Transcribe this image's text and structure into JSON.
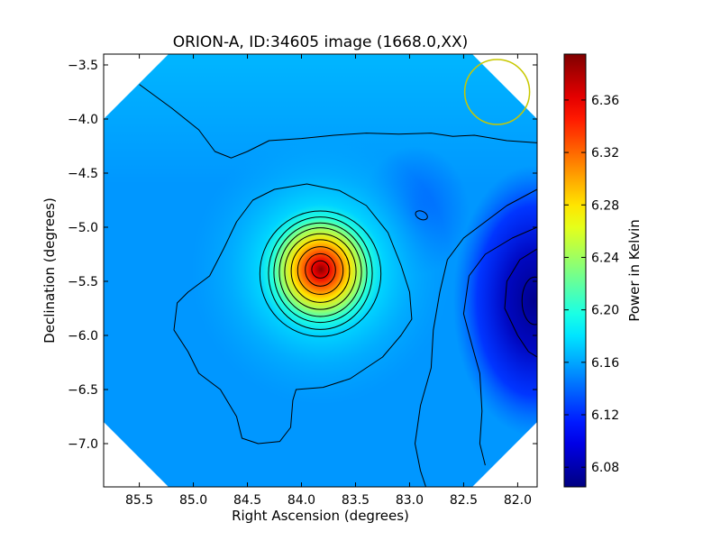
{
  "chart_data": {
    "type": "heatmap",
    "title": "ORION-A, ID:34605 image (1668.0,XX)",
    "xlabel": "Right Ascension (degrees)",
    "ylabel": "Declination (degrees)",
    "colorbar_label": "Power in Kelvin",
    "colormap": "jet",
    "xlim": [
      85.83,
      81.82
    ],
    "ylim": [
      -7.4,
      -3.4
    ],
    "x_ticks": [
      {
        "v": 85.5,
        "label": "85.5"
      },
      {
        "v": 85.0,
        "label": "85.0"
      },
      {
        "v": 84.5,
        "label": "84.5"
      },
      {
        "v": 84.0,
        "label": "84.0"
      },
      {
        "v": 83.5,
        "label": "83.5"
      },
      {
        "v": 83.0,
        "label": "83.0"
      },
      {
        "v": 82.5,
        "label": "82.5"
      },
      {
        "v": 82.0,
        "label": "82.0"
      }
    ],
    "y_ticks": [
      {
        "v": -3.5,
        "label": "−3.5"
      },
      {
        "v": -4.0,
        "label": "−4.0"
      },
      {
        "v": -4.5,
        "label": "−4.5"
      },
      {
        "v": -5.0,
        "label": "−5.0"
      },
      {
        "v": -5.5,
        "label": "−5.5"
      },
      {
        "v": -6.0,
        "label": "−6.0"
      },
      {
        "v": -6.5,
        "label": "−6.5"
      },
      {
        "v": -7.0,
        "label": "−7.0"
      }
    ],
    "colorbar_range": [
      6.065,
      6.395
    ],
    "colorbar_ticks": [
      {
        "v": 6.08,
        "label": "6.08"
      },
      {
        "v": 6.12,
        "label": "6.12"
      },
      {
        "v": 6.16,
        "label": "6.16"
      },
      {
        "v": 6.2,
        "label": "6.20"
      },
      {
        "v": 6.24,
        "label": "6.24"
      },
      {
        "v": 6.28,
        "label": "6.28"
      },
      {
        "v": 6.32,
        "label": "6.32"
      },
      {
        "v": 6.36,
        "label": "6.36"
      }
    ],
    "field": {
      "background": 6.155,
      "peak": {
        "ra": 83.82,
        "dec": -5.39,
        "value": 6.392
      },
      "cold_region": {
        "ra": 81.85,
        "dec": -5.68,
        "value": 6.07
      },
      "bright_band": {
        "dec": -3.7,
        "value": 6.165
      }
    },
    "beam_circle": {
      "ra": 82.19,
      "dec": -3.75,
      "radius_deg": 0.3,
      "color": "#c8c800"
    },
    "masked_corners": [
      "top-left",
      "top-right",
      "bottom-left",
      "bottom-right"
    ],
    "contour_color": "#000000"
  }
}
